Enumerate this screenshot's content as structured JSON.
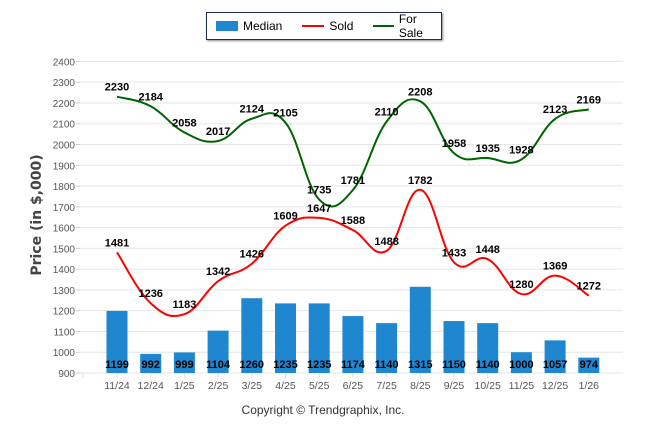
{
  "chart_data": {
    "type": "bar",
    "title": "",
    "xlabel": "",
    "ylabel": "Price (in $,000)",
    "ylim": [
      900,
      2400
    ],
    "yticks": [
      900,
      1000,
      1100,
      1200,
      1300,
      1400,
      1500,
      1600,
      1700,
      1800,
      1900,
      2000,
      2100,
      2200,
      2300,
      2400
    ],
    "grid": true,
    "legend_position": "top-center",
    "categories": [
      "11/24",
      "12/24",
      "1/25",
      "2/25",
      "3/25",
      "4/25",
      "5/25",
      "6/25",
      "7/25",
      "8/25",
      "9/25",
      "10/25",
      "11/25",
      "12/25",
      "1/26"
    ],
    "series": [
      {
        "name": "Median",
        "type": "bar",
        "color": "#1e87cf",
        "values": [
          1199,
          992,
          999,
          1104,
          1260,
          1235,
          1235,
          1174,
          1140,
          1315,
          1150,
          1140,
          1000,
          1057,
          974
        ]
      },
      {
        "name": "Sold",
        "type": "line",
        "color": "#ff0000",
        "values": [
          1481,
          1236,
          1183,
          1342,
          1426,
          1609,
          1647,
          1588,
          1488,
          1782,
          1433,
          1448,
          1280,
          1369,
          1272
        ]
      },
      {
        "name": "For Sale",
        "type": "line",
        "color": "#006400",
        "values": [
          2230,
          2184,
          2058,
          2017,
          2124,
          2105,
          1735,
          1781,
          2110,
          2208,
          1958,
          1935,
          1928,
          2123,
          2169
        ]
      }
    ]
  },
  "legend": {
    "items": [
      {
        "label": "Median",
        "color": "#1e87cf"
      },
      {
        "label": "Sold",
        "color": "#ff0000"
      },
      {
        "label": "For Sale",
        "color": "#006400"
      }
    ]
  },
  "footer": {
    "copyright": "Copyright © Trendgraphix, Inc."
  }
}
